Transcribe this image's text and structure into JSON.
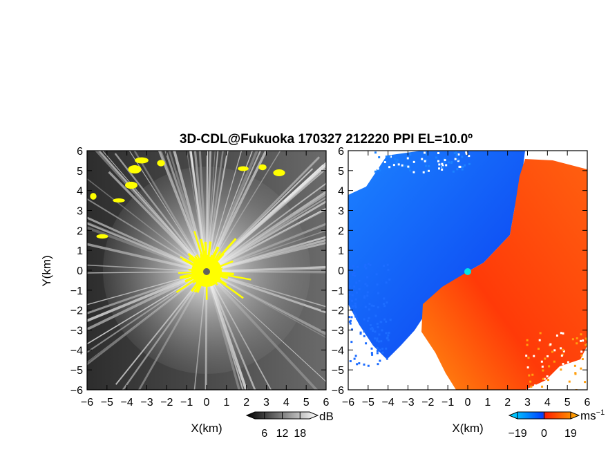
{
  "chart_data": [
    {
      "type": "heatmap",
      "title": "3D-CDL@Fukuoka 170327 212220 PPI EL=10.0º",
      "panel": "reflectivity",
      "xlabel": "X(km)",
      "ylabel": "Y(km)",
      "xlim": [
        -6,
        6
      ],
      "ylim": [
        -6,
        6
      ],
      "xticks": [
        "−6",
        "−5",
        "−4",
        "−3",
        "−2",
        "−1",
        "0",
        "1",
        "2",
        "3",
        "4",
        "5",
        "6"
      ],
      "yticks": [
        "6",
        "5",
        "4",
        "3",
        "2",
        "1",
        "0",
        "−1",
        "−2",
        "−3",
        "−4",
        "−5",
        "−6"
      ],
      "colorbar": {
        "unit": "dB",
        "ticks": [
          "6",
          "12",
          "18"
        ],
        "tick_values": [
          6,
          12,
          18
        ],
        "range": [
          0,
          24
        ],
        "colors": [
          "#000000",
          "#ffffff"
        ]
      },
      "radar_position": [
        0,
        0
      ],
      "colors": {
        "background": "#3a3a3a",
        "beam": "#e8e8e8",
        "high": "#ffff00",
        "radar": "#606060"
      }
    },
    {
      "type": "heatmap",
      "panel": "doppler-velocity",
      "xlabel": "X(km)",
      "xlim": [
        -6,
        6
      ],
      "ylim": [
        -6,
        6
      ],
      "xticks": [
        "−6",
        "−5",
        "−4",
        "−3",
        "−2",
        "−1",
        "0",
        "1",
        "2",
        "3",
        "4",
        "5",
        "6"
      ],
      "yticks": [
        "6",
        "5",
        "4",
        "3",
        "2",
        "1",
        "0",
        "−1",
        "−2",
        "−3",
        "−4",
        "−5",
        "−6"
      ],
      "colorbar": {
        "unit": "ms",
        "unit_exponent": "−1",
        "ticks": [
          "−19",
          "0",
          "19"
        ],
        "tick_values": [
          -19,
          0,
          19
        ],
        "range": [
          -25,
          25
        ],
        "colors": [
          "#00e0ff",
          "#0060ff",
          "#ff2000",
          "#ffb000"
        ]
      },
      "radar_position": [
        0,
        0
      ],
      "colors": {
        "approaching": "#1e78ff",
        "receding": "#ff5a10",
        "radar": "#00e5e5"
      }
    }
  ]
}
